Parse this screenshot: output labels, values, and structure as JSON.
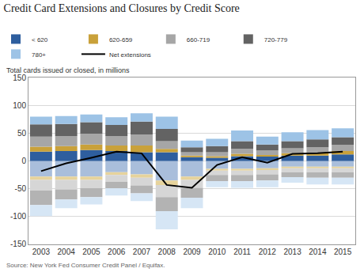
{
  "chart_data": {
    "type": "bar",
    "stacked": true,
    "title": "Credit Card Extensions and Closures by Credit Score",
    "y_label": "Total cards issued or closed, in millions",
    "source": "Source: New York Fed Consumer Credit Panel / Equifax.",
    "categories": [
      "2003",
      "2004",
      "2005",
      "2006",
      "2007",
      "2008",
      "2009",
      "2010",
      "2011",
      "2012",
      "2013",
      "2014",
      "2015"
    ],
    "ylim": [
      -150,
      150
    ],
    "yticks": [
      -150,
      -100,
      -50,
      0,
      50,
      100,
      150
    ],
    "grid": true,
    "legend": "top",
    "series": [
      {
        "name": "< 620",
        "color": "#2e5e9e",
        "values": [
          17,
          18,
          20,
          18,
          16,
          16,
          7,
          6,
          9,
          8,
          10,
          10,
          12
        ],
        "closures": {
          "color": "#a9bedb",
          "values": [
            -28,
            -28,
            -28,
            -20,
            -24,
            -35,
            -28,
            -14,
            -14,
            -13,
            -10,
            -10,
            -10
          ]
        }
      },
      {
        "name": "620-659",
        "color": "#c9a13a",
        "values": [
          9,
          9,
          10,
          10,
          12,
          6,
          3,
          3,
          4,
          3,
          4,
          5,
          6
        ],
        "closures": {
          "color": "#e6d39c",
          "values": [
            -6,
            -6,
            -6,
            -5,
            -6,
            -8,
            -6,
            -3,
            -3,
            -3,
            -3,
            -3,
            -3
          ]
        }
      },
      {
        "name": "660-719",
        "color": "#a6a6a6",
        "values": [
          18,
          18,
          19,
          17,
          20,
          14,
          6,
          7,
          9,
          8,
          9,
          10,
          11
        ],
        "closures": {
          "color": "#d6d6d6",
          "values": [
            -19,
            -17,
            -15,
            -12,
            -14,
            -22,
            -14,
            -8,
            -8,
            -8,
            -7,
            -7,
            -7
          ]
        }
      },
      {
        "name": "720-779",
        "color": "#636363",
        "values": [
          22,
          22,
          21,
          20,
          23,
          22,
          9,
          11,
          14,
          11,
          13,
          14,
          14
        ],
        "closures": {
          "color": "#b3b3b3",
          "values": [
            -26,
            -18,
            -16,
            -12,
            -14,
            -25,
            -18,
            -11,
            -11,
            -11,
            -9,
            -10,
            -10
          ]
        }
      },
      {
        "name": "780+",
        "color": "#9dc3e6",
        "values": [
          14,
          14,
          14,
          14,
          15,
          22,
          12,
          13,
          19,
          14,
          16,
          17,
          16
        ],
        "closures": {
          "color": "#d6e6f5",
          "values": [
            -20,
            -16,
            -13,
            -13,
            -14,
            -33,
            -19,
            -11,
            -12,
            -12,
            -10,
            -12,
            -12
          ]
        }
      },
      {
        "name": "Net extensions",
        "type": "line",
        "color": "#000000",
        "values": [
          -18,
          -4,
          6,
          17,
          14,
          -43,
          -48,
          -7,
          7,
          -3,
          13,
          14,
          17
        ]
      }
    ]
  }
}
